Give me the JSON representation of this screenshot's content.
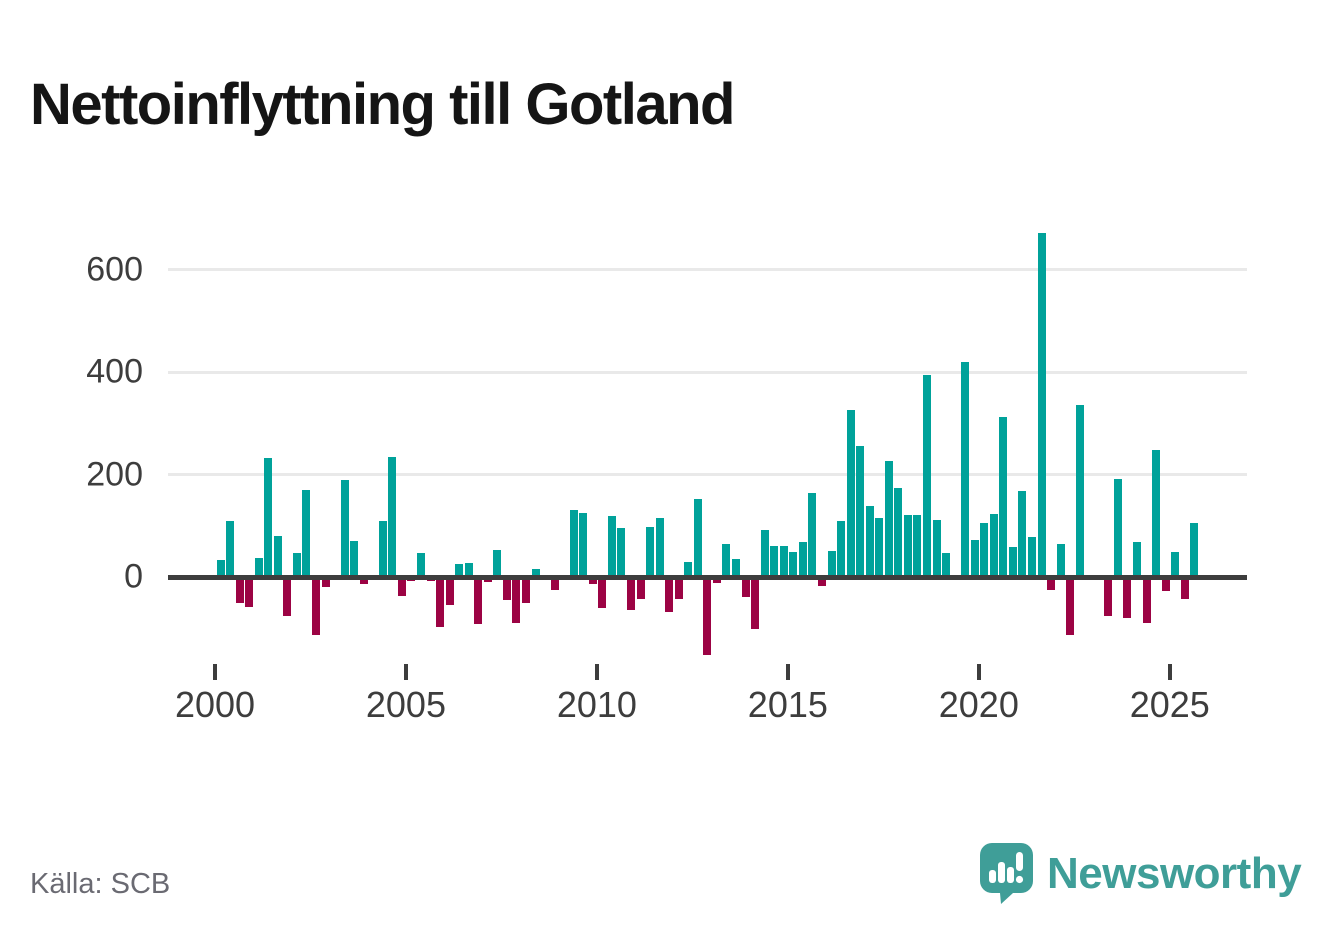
{
  "header": {
    "title": "Nettoinflyttning till Gotland"
  },
  "footer": {
    "source": "Källa: SCB",
    "brand": "Newsworthy"
  },
  "colors": {
    "positive": "#00a29a",
    "negative": "#9c0344",
    "axis": "#3d3d3d",
    "grid": "#e9e9e9",
    "text_muted": "#6a6a72",
    "title": "#151515",
    "brand_teal": "#3f9e98",
    "logo_bar_white": "#ffffff"
  },
  "chart_data": {
    "type": "bar",
    "title": "Nettoinflyttning till Gotland",
    "frequency": "quarterly",
    "start_year": 2000,
    "start_quarter": 1,
    "values": [
      33,
      110,
      -51,
      -58,
      38,
      233,
      80,
      -77,
      47,
      170,
      -114,
      -20,
      0,
      190,
      70,
      -14,
      0,
      110,
      235,
      -38,
      -8,
      47,
      -8,
      -98,
      -54,
      25,
      28,
      -92,
      -10,
      52,
      -44,
      -90,
      -50,
      15,
      0,
      -26,
      0,
      130,
      125,
      -14,
      -60,
      120,
      95,
      -65,
      -42,
      98,
      115,
      -69,
      -43,
      29,
      153,
      -153,
      -12,
      64,
      36,
      -39,
      -102,
      92,
      60,
      60,
      49,
      68,
      163,
      -18,
      50,
      110,
      325,
      255,
      138,
      115,
      227,
      173,
      121,
      121,
      395,
      112,
      47,
      0,
      420,
      73,
      106,
      123,
      312,
      58,
      168,
      78,
      672,
      -25,
      65,
      -114,
      335,
      0,
      0,
      -77,
      192,
      -80,
      68,
      -90,
      247,
      -27,
      49,
      -43,
      105
    ],
    "x_tick_years": [
      2000,
      2005,
      2010,
      2015,
      2020,
      2025
    ],
    "y_ticks": [
      0,
      200,
      400,
      600
    ],
    "ylim": [
      -170,
      700
    ],
    "grid": "horizontal",
    "legend": "none",
    "bar_color_positive": "#00a29a",
    "bar_color_negative": "#9c0344"
  }
}
